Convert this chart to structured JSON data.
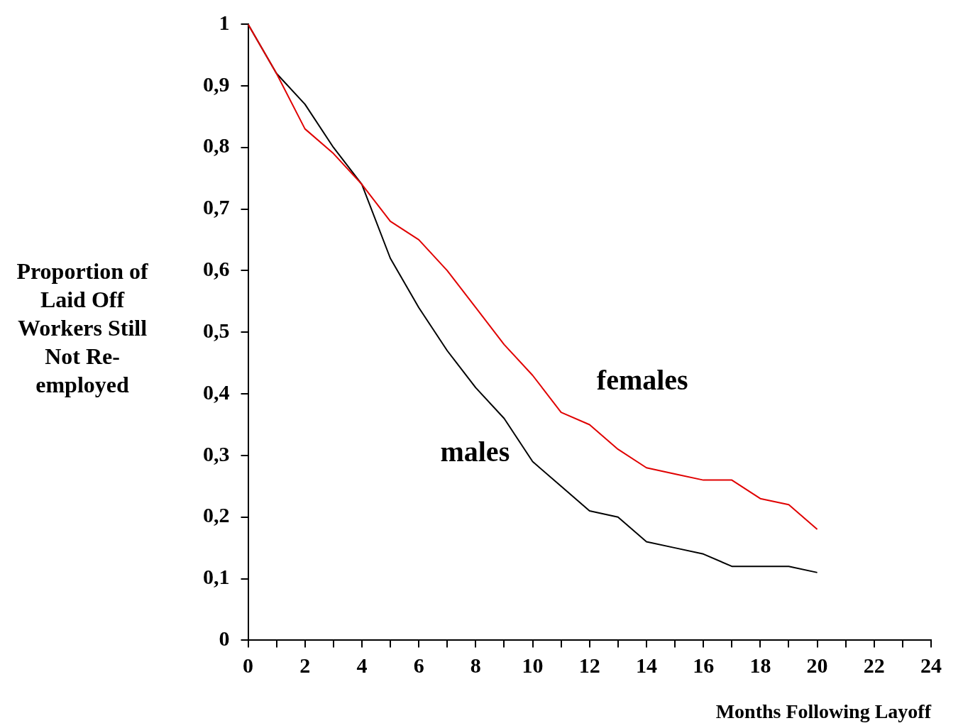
{
  "chart_data": {
    "type": "line",
    "ylabel": "Proportion of Laid Off Workers Still Not Re-employed",
    "xlabel": "Months Following Layoff",
    "x": [
      0,
      1,
      2,
      3,
      4,
      5,
      6,
      7,
      8,
      9,
      10,
      11,
      12,
      13,
      14,
      15,
      16,
      17,
      18,
      19,
      20
    ],
    "series": [
      {
        "name": "females",
        "color": "#e00000",
        "values": [
          1,
          0.92,
          0.83,
          0.79,
          0.74,
          0.68,
          0.65,
          0.6,
          0.54,
          0.48,
          0.43,
          0.37,
          0.35,
          0.31,
          0.28,
          0.27,
          0.26,
          0.26,
          0.23,
          0.22,
          0.18
        ]
      },
      {
        "name": "males",
        "color": "#000000",
        "values": [
          1,
          0.92,
          0.87,
          0.8,
          0.74,
          0.62,
          0.54,
          0.47,
          0.41,
          0.36,
          0.29,
          0.25,
          0.21,
          0.2,
          0.16,
          0.15,
          0.14,
          0.12,
          0.12,
          0.12,
          0.11
        ]
      }
    ],
    "xlim": [
      0,
      24
    ],
    "xticks": [
      0,
      {
        "value": 1,
        "label": null
      },
      2,
      {
        "value": 3,
        "label": null
      },
      4,
      {
        "value": 5,
        "label": null
      },
      6,
      {
        "value": 7,
        "label": null
      },
      8,
      {
        "value": 9,
        "label": null
      },
      10,
      {
        "value": 11,
        "label": null
      },
      12,
      {
        "value": 13,
        "label": null
      },
      14,
      {
        "value": 15,
        "label": null
      },
      16,
      {
        "value": 17,
        "label": null
      },
      18,
      {
        "value": 19,
        "label": null
      },
      20,
      {
        "value": 21,
        "label": null
      },
      22,
      {
        "value": 23,
        "label": null
      },
      24
    ],
    "ylim": [
      0,
      1
    ],
    "yticks": [
      0,
      {
        "value": 0.1,
        "label": "0,1"
      },
      {
        "value": 0.2,
        "label": "0,2"
      },
      {
        "value": 0.3,
        "label": "0,3"
      },
      {
        "value": 0.4,
        "label": "0,4"
      },
      {
        "value": 0.5,
        "label": "0,5"
      },
      {
        "value": 0.6,
        "label": "0,6"
      },
      {
        "value": 0.7,
        "label": "0,7"
      },
      {
        "value": 0.8,
        "label": "0,8"
      },
      {
        "value": 0.9,
        "label": "0,9"
      },
      1
    ],
    "grid": false,
    "legend": false,
    "marker": "none",
    "line_style": "solid"
  }
}
